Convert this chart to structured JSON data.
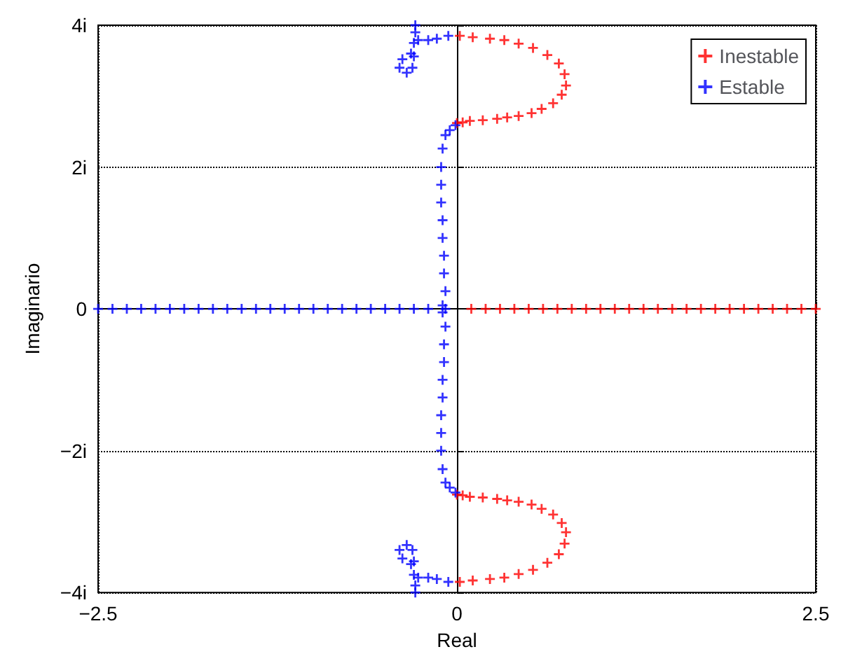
{
  "chart_data": {
    "type": "scatter",
    "xlabel": "Real",
    "ylabel": "Imaginario",
    "xlim": [
      -2.5,
      2.5
    ],
    "ylim": [
      -4,
      4
    ],
    "xticks": [
      {
        "value": -2.5,
        "label": "−2.5"
      },
      0,
      2.5
    ],
    "yticks": [
      {
        "value": -4,
        "label": "−4i"
      },
      {
        "value": -2,
        "label": "−2i"
      },
      0,
      {
        "value": 2,
        "label": "2i"
      },
      {
        "value": 4,
        "label": "4i"
      }
    ],
    "grid": true,
    "legend": "top right",
    "marker": "cross",
    "series": [
      {
        "name": "Inestable",
        "color": "#ff0000",
        "x": [
          0.1,
          0.2,
          0.3,
          0.4,
          0.5,
          0.6,
          0.7,
          0.8,
          0.9,
          1.0,
          1.1,
          1.2,
          1.3,
          1.4,
          1.5,
          1.6,
          1.7,
          1.8,
          1.9,
          2.0,
          2.1,
          2.2,
          2.3,
          2.4,
          2.5,
          0.0,
          0.04,
          0.09,
          0.18,
          0.28,
          0.35,
          0.43,
          0.52,
          0.59,
          0.67,
          0.73,
          0.76,
          0.75,
          0.71,
          0.63,
          0.53,
          0.43,
          0.33,
          0.23,
          0.11,
          0.02,
          0.0,
          0.04,
          0.09,
          0.18,
          0.28,
          0.35,
          0.43,
          0.52,
          0.59,
          0.67,
          0.73,
          0.76,
          0.75,
          0.71,
          0.63,
          0.53,
          0.43,
          0.33,
          0.23,
          0.11,
          0.02
        ],
        "values": [
          0,
          0,
          0,
          0,
          0,
          0,
          0,
          0,
          0,
          0,
          0,
          0,
          0,
          0,
          0,
          0,
          0,
          0,
          0,
          0,
          0,
          0,
          0,
          0,
          0,
          2.62,
          2.63,
          2.65,
          2.66,
          2.68,
          2.7,
          2.72,
          2.76,
          2.82,
          2.9,
          3.02,
          3.15,
          3.31,
          3.46,
          3.58,
          3.68,
          3.74,
          3.79,
          3.81,
          3.83,
          3.85,
          -2.62,
          -2.63,
          -2.65,
          -2.66,
          -2.68,
          -2.7,
          -2.72,
          -2.76,
          -2.82,
          -2.9,
          -3.02,
          -3.15,
          -3.31,
          -3.46,
          -3.58,
          -3.68,
          -3.74,
          -3.79,
          -3.81,
          -3.83,
          -3.85
        ]
      },
      {
        "name": "Estable",
        "color": "#0000ff",
        "x": [
          -2.5,
          -2.4,
          -2.3,
          -2.2,
          -2.1,
          -2.0,
          -1.9,
          -1.8,
          -1.7,
          -1.6,
          -1.5,
          -1.4,
          -1.3,
          -1.2,
          -1.1,
          -1.0,
          -0.9,
          -0.8,
          -0.7,
          -0.6,
          -0.5,
          -0.4,
          -0.3,
          -0.2,
          -0.1,
          -0.1,
          -0.01,
          -0.05,
          -0.08,
          -0.1,
          -0.11,
          -0.11,
          -0.11,
          -0.1,
          -0.1,
          -0.09,
          -0.09,
          -0.08,
          -0.08,
          -0.01,
          -0.05,
          -0.08,
          -0.1,
          -0.11,
          -0.11,
          -0.11,
          -0.1,
          -0.1,
          -0.09,
          -0.09,
          -0.08,
          -0.06,
          -0.14,
          -0.2,
          -0.27,
          -0.29,
          -0.29,
          -0.3,
          -0.32,
          -0.38,
          -0.4,
          -0.35,
          -0.31,
          -0.3,
          -0.06,
          -0.14,
          -0.2,
          -0.27,
          -0.29,
          -0.29,
          -0.3,
          -0.32,
          -0.38,
          -0.4,
          -0.35,
          -0.31,
          -0.3
        ],
        "values": [
          0,
          0,
          0,
          0,
          0,
          0,
          0,
          0,
          0,
          0,
          0,
          0,
          0,
          0,
          0,
          0,
          0,
          0,
          0,
          0,
          0,
          0,
          0,
          0,
          0.05,
          -0.05,
          2.59,
          2.52,
          2.45,
          2.26,
          2.0,
          1.75,
          1.5,
          1.25,
          1.0,
          0.75,
          0.5,
          0.25,
          0,
          -2.59,
          -2.52,
          -2.45,
          -2.26,
          -2.0,
          -1.75,
          -1.5,
          -1.25,
          -1.0,
          -0.75,
          -0.5,
          -0.25,
          3.85,
          3.81,
          3.79,
          3.79,
          4.0,
          3.9,
          3.75,
          3.6,
          3.52,
          3.4,
          3.33,
          3.4,
          3.56,
          -3.85,
          -3.81,
          -3.79,
          -3.79,
          -4.0,
          -3.9,
          -3.75,
          -3.6,
          -3.52,
          -3.4,
          -3.33,
          -3.4,
          -3.56
        ]
      }
    ]
  }
}
